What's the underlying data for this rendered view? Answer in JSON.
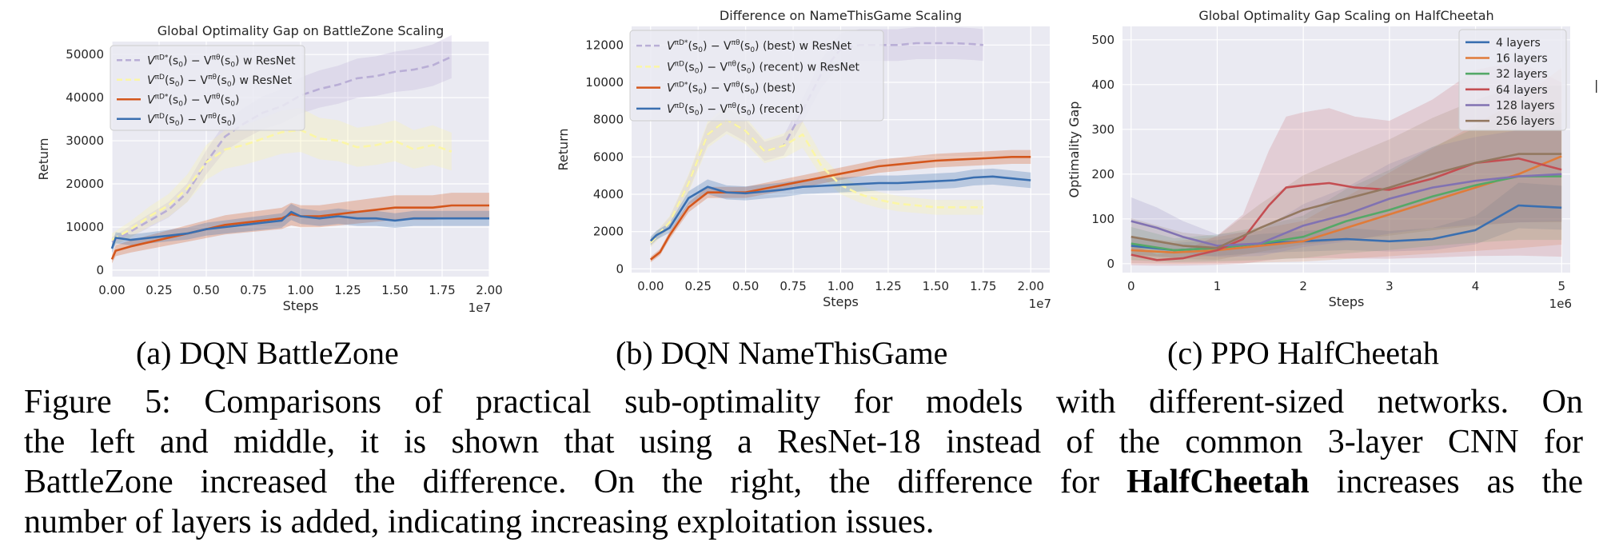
{
  "figure": {
    "subcaptions": [
      "(a)  DQN BattleZone",
      "(b)  DQN NameThisGame",
      "(c)  PPO HalfCheetah"
    ],
    "caption_lines": [
      {
        "text": "Figure 5: Comparisons of practical sub-optimality for models with different-sized networks. On"
      },
      {
        "text": "the left and middle, it is shown that using a ResNet-18 instead of the common 3-layer CNN for"
      },
      {
        "text": "BattleZone increased the difference. On the right, the difference for ",
        "bold": "HalfCheetah",
        "after": " increases as the"
      },
      {
        "text": "number of layers is added, indicating increasing exploitation issues."
      }
    ]
  },
  "chart_data": [
    {
      "type": "line",
      "title": "Global Optimality Gap on BattleZone Scaling",
      "xlabel": "Steps",
      "ylabel": "Return",
      "x_multiplier": "1e7",
      "xlim": [
        0,
        2.0
      ],
      "ylim": [
        -1500,
        53000
      ],
      "xticks": [
        0,
        0.25,
        0.5,
        0.75,
        1.0,
        1.25,
        1.5,
        1.75,
        2.0
      ],
      "xtick_labels": [
        "0.00",
        "0.25",
        "0.50",
        "0.75",
        "1.00",
        "1.25",
        "1.50",
        "1.75",
        "2.00"
      ],
      "yticks": [
        0,
        10000,
        20000,
        30000,
        40000,
        50000
      ],
      "ytick_labels": [
        "0",
        "10000",
        "20000",
        "30000",
        "40000",
        "50000"
      ],
      "grid": true,
      "legend_position": "upper-left",
      "series": [
        {
          "name": "V^{π_{D*}}(s0) − V^{π^θ}(s0) w ResNet",
          "color": "#b9aed6",
          "dash": true,
          "band": 0.09,
          "x": [
            0,
            0.1,
            0.2,
            0.3,
            0.4,
            0.5,
            0.6,
            0.7,
            0.8,
            0.9,
            1.0,
            1.1,
            1.2,
            1.3,
            1.4,
            1.5,
            1.6,
            1.7,
            1.8
          ],
          "y": [
            6500,
            9000,
            11500,
            14000,
            18000,
            25000,
            31000,
            34000,
            36500,
            38000,
            40500,
            42000,
            43000,
            44500,
            45000,
            46000,
            46500,
            47500,
            49500
          ]
        },
        {
          "name": "V^{π_D}(s0) − V^{π^θ}(s0) w ResNet",
          "color": "#fbf6a6",
          "dash": true,
          "band": 0.14,
          "x": [
            0,
            0.1,
            0.2,
            0.3,
            0.4,
            0.5,
            0.6,
            0.7,
            0.8,
            0.9,
            1.0,
            1.1,
            1.2,
            1.3,
            1.4,
            1.5,
            1.6,
            1.7,
            1.8
          ],
          "y": [
            7000,
            9500,
            12500,
            15000,
            19000,
            25000,
            28000,
            29000,
            30500,
            32000,
            32500,
            30500,
            30000,
            28500,
            29000,
            30000,
            28000,
            29000,
            27500
          ]
        },
        {
          "name": "V^{π_{D*}}(s0) − V^{π^θ}(s0)",
          "color": "#d4571d",
          "dash": false,
          "band": 0.16,
          "x": [
            0,
            0.02,
            0.1,
            0.2,
            0.3,
            0.4,
            0.5,
            0.6,
            0.7,
            0.8,
            0.9,
            0.95,
            1.0,
            1.1,
            1.2,
            1.3,
            1.4,
            1.5,
            1.6,
            1.7,
            1.8,
            1.9,
            2.0
          ],
          "y": [
            2500,
            4500,
            5500,
            6500,
            7500,
            8500,
            9500,
            10500,
            11000,
            11500,
            12000,
            13000,
            12500,
            12500,
            13000,
            13500,
            14000,
            14500,
            14500,
            14500,
            15000,
            15000,
            15000
          ]
        },
        {
          "name": "V^{π_D}(s0) − V^{π^θ}(s0)",
          "color": "#3a6fb0",
          "dash": false,
          "band": 0.1,
          "x": [
            0,
            0.02,
            0.1,
            0.2,
            0.3,
            0.4,
            0.5,
            0.6,
            0.7,
            0.8,
            0.9,
            0.95,
            1.0,
            1.1,
            1.2,
            1.3,
            1.4,
            1.5,
            1.6,
            1.7,
            1.8,
            1.9,
            2.0
          ],
          "y": [
            5000,
            7500,
            7000,
            7500,
            8000,
            8500,
            9500,
            10000,
            10500,
            11000,
            11500,
            13500,
            12500,
            12000,
            12500,
            12000,
            12000,
            11500,
            12000,
            12000,
            12000,
            12000,
            12000
          ]
        }
      ]
    },
    {
      "type": "line",
      "title": "Difference on NameThisGame Scaling",
      "xlabel": "Steps",
      "ylabel": "Return",
      "x_multiplier": "1e7",
      "xlim": [
        -0.1,
        2.1
      ],
      "ylim": [
        -200,
        13000
      ],
      "xticks": [
        0,
        0.25,
        0.5,
        0.75,
        1.0,
        1.25,
        1.5,
        1.75,
        2.0
      ],
      "xtick_labels": [
        "0.00",
        "0.25",
        "0.50",
        "0.75",
        "1.00",
        "1.25",
        "1.50",
        "1.75",
        "2.00"
      ],
      "yticks": [
        0,
        2000,
        4000,
        6000,
        8000,
        10000,
        12000
      ],
      "ytick_labels": [
        "0",
        "2000",
        "4000",
        "6000",
        "8000",
        "10000",
        "12000"
      ],
      "grid": true,
      "legend_position": "upper-left",
      "series": [
        {
          "name": "V^{π_{D*}}(s0) − V^{π^θ}(s0) (best) w ResNet",
          "color": "#b9aed6",
          "dash": true,
          "band": 0.06,
          "x": [
            0,
            0.1,
            0.2,
            0.3,
            0.4,
            0.5,
            0.6,
            0.7,
            0.8,
            0.9,
            1.0,
            1.1,
            1.2,
            1.3,
            1.4,
            1.5,
            1.6,
            1.7,
            1.75
          ],
          "y": [
            1400,
            2500,
            4600,
            7200,
            8000,
            7400,
            6300,
            6600,
            8500,
            10500,
            11800,
            12000,
            12000,
            12000,
            12100,
            12100,
            12100,
            12050,
            12000
          ]
        },
        {
          "name": "V^{π_D}(s0) − V^{π^θ}(s0) (recent) w ResNet",
          "color": "#fbf6a6",
          "dash": true,
          "band": 0.08,
          "x": [
            0,
            0.1,
            0.2,
            0.3,
            0.4,
            0.5,
            0.6,
            0.7,
            0.8,
            0.9,
            1.0,
            1.1,
            1.2,
            1.3,
            1.4,
            1.5,
            1.6,
            1.7,
            1.75
          ],
          "y": [
            1400,
            2500,
            4600,
            7200,
            8000,
            7400,
            6300,
            6600,
            7200,
            5500,
            4500,
            4000,
            3700,
            3500,
            3400,
            3300,
            3300,
            3300,
            3300
          ]
        },
        {
          "name": "V^{π_{D*}}(s0) − V^{π^θ}(s0) (best)",
          "color": "#d4571d",
          "dash": false,
          "band": 0.04,
          "x": [
            0,
            0.05,
            0.1,
            0.2,
            0.3,
            0.4,
            0.5,
            0.6,
            0.7,
            0.8,
            0.9,
            1.0,
            1.1,
            1.2,
            1.3,
            1.4,
            1.5,
            1.6,
            1.7,
            1.8,
            1.9,
            2.0
          ],
          "y": [
            500,
            900,
            1800,
            3300,
            4100,
            4100,
            4100,
            4300,
            4500,
            4700,
            4900,
            5100,
            5300,
            5500,
            5600,
            5700,
            5800,
            5850,
            5900,
            5950,
            6000,
            6000
          ]
        },
        {
          "name": "V^{π_D}(s0) − V^{π^θ}(s0) (recent)",
          "color": "#3a6fb0",
          "dash": false,
          "band": 0.06,
          "x": [
            0,
            0.03,
            0.1,
            0.2,
            0.3,
            0.4,
            0.5,
            0.6,
            0.7,
            0.8,
            0.9,
            1.0,
            1.1,
            1.2,
            1.3,
            1.4,
            1.5,
            1.6,
            1.7,
            1.8,
            1.9,
            2.0
          ],
          "y": [
            1500,
            1800,
            2200,
            3800,
            4400,
            4100,
            4050,
            4150,
            4250,
            4400,
            4450,
            4500,
            4550,
            4600,
            4600,
            4650,
            4700,
            4750,
            4900,
            4950,
            4850,
            4750
          ]
        }
      ]
    },
    {
      "type": "line",
      "title": "Global Optimality Gap Scaling on HalfCheetah",
      "xlabel": "Steps",
      "ylabel": "Optimality Gap",
      "x_multiplier": "1e6",
      "xlim": [
        -0.1,
        5.1
      ],
      "ylim": [
        -20,
        530
      ],
      "xticks": [
        0,
        1,
        2,
        3,
        4,
        5
      ],
      "xtick_labels": [
        "0",
        "1",
        "2",
        "3",
        "4",
        "5"
      ],
      "yticks": [
        0,
        100,
        200,
        300,
        400,
        500
      ],
      "ytick_labels": [
        "0",
        "100",
        "200",
        "300",
        "400",
        "500"
      ],
      "grid": true,
      "legend_position": "upper-right",
      "series": [
        {
          "name": "4 layers",
          "color": "#3a6fb0",
          "dash": false,
          "band": 0.35,
          "x": [
            0,
            0.5,
            1.0,
            1.5,
            2.0,
            2.5,
            3.0,
            3.5,
            4.0,
            4.5,
            5.0
          ],
          "y": [
            40,
            30,
            35,
            45,
            50,
            55,
            50,
            55,
            75,
            130,
            125
          ]
        },
        {
          "name": "16 layers",
          "color": "#e07b39",
          "dash": false,
          "band": 0.8,
          "x": [
            0,
            0.5,
            1.0,
            1.5,
            2.0,
            2.5,
            3.0,
            3.5,
            4.0,
            4.5,
            5.0
          ],
          "y": [
            30,
            25,
            30,
            40,
            50,
            80,
            110,
            140,
            170,
            200,
            240
          ]
        },
        {
          "name": "32 layers",
          "color": "#55a868",
          "dash": false,
          "band": 0.7,
          "x": [
            0,
            0.5,
            1.0,
            1.5,
            2.0,
            2.5,
            3.0,
            3.5,
            4.0,
            4.5,
            5.0
          ],
          "y": [
            45,
            30,
            35,
            45,
            60,
            95,
            120,
            150,
            175,
            195,
            195
          ]
        },
        {
          "name": "64 layers",
          "color": "#c44e52",
          "dash": false,
          "band": 0.9,
          "x": [
            0,
            0.3,
            0.6,
            1.0,
            1.3,
            1.6,
            1.8,
            2.0,
            2.3,
            2.6,
            3.0,
            3.5,
            4.0,
            4.5,
            5.0
          ],
          "y": [
            20,
            8,
            12,
            30,
            55,
            130,
            170,
            175,
            180,
            170,
            165,
            190,
            225,
            235,
            210
          ]
        },
        {
          "name": "128 layers",
          "color": "#8172b2",
          "dash": false,
          "band": 0.5,
          "x": [
            0,
            0.3,
            0.6,
            1.0,
            1.5,
            2.0,
            2.5,
            3.0,
            3.5,
            4.0,
            4.5,
            5.0
          ],
          "y": [
            95,
            80,
            60,
            40,
            45,
            85,
            110,
            145,
            170,
            185,
            195,
            200
          ]
        },
        {
          "name": "256 layers",
          "color": "#937860",
          "dash": false,
          "band": 0.6,
          "x": [
            0,
            0.3,
            0.6,
            1.0,
            1.5,
            2.0,
            2.5,
            3.0,
            3.5,
            4.0,
            4.5,
            5.0
          ],
          "y": [
            60,
            50,
            40,
            35,
            80,
            120,
            145,
            170,
            200,
            225,
            245,
            245
          ]
        }
      ]
    }
  ]
}
